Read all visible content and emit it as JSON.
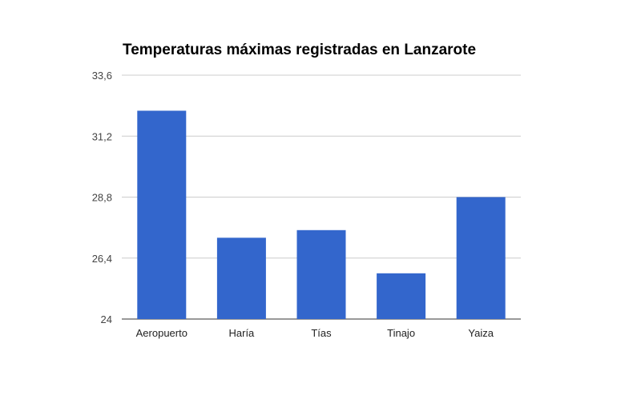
{
  "chart_data": {
    "type": "bar",
    "title": "Temperaturas máximas registradas en Lanzarote",
    "categories": [
      "Aeropuerto",
      "Haría",
      "Tías",
      "Tinajo",
      "Yaiza"
    ],
    "values": [
      32.2,
      27.2,
      27.5,
      25.8,
      28.8
    ],
    "ylim": [
      24,
      33.6
    ],
    "yticks": [
      "24",
      "26,4",
      "28,8",
      "31,2",
      "33,6"
    ],
    "ytick_values": [
      24,
      26.4,
      28.8,
      31.2,
      33.6
    ],
    "xlabel": "",
    "ylabel": "",
    "grid": true,
    "bar_color": "#3366cc"
  }
}
